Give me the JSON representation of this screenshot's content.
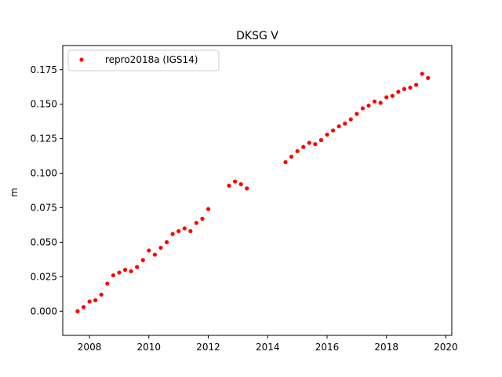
{
  "chart_data": {
    "type": "scatter",
    "title": "DKSG V",
    "xlabel": "",
    "ylabel": "m",
    "xlim": [
      2007.1,
      2020.2
    ],
    "ylim": [
      -0.0175,
      0.1925
    ],
    "x_ticks": [
      2008,
      2010,
      2012,
      2014,
      2016,
      2018,
      2020
    ],
    "y_ticks": [
      0.0,
      0.025,
      0.05,
      0.075,
      0.1,
      0.125,
      0.15,
      0.175
    ],
    "x_tick_labels": [
      "2008",
      "2010",
      "2012",
      "2014",
      "2016",
      "2018",
      "2020"
    ],
    "y_tick_labels": [
      "0.000",
      "0.025",
      "0.050",
      "0.075",
      "0.100",
      "0.125",
      "0.150",
      "0.175"
    ],
    "grid": false,
    "legend_position": "top-left",
    "series": [
      {
        "name": "repro2018a (IGS14)",
        "color": "#ff0000",
        "marker": "circle",
        "x": [
          2007.6,
          2007.8,
          2008.0,
          2008.2,
          2008.4,
          2008.6,
          2008.8,
          2009.0,
          2009.2,
          2009.4,
          2009.6,
          2009.8,
          2010.0,
          2010.2,
          2010.4,
          2010.6,
          2010.8,
          2011.0,
          2011.2,
          2011.4,
          2011.6,
          2011.8,
          2012.0,
          2012.7,
          2012.9,
          2013.1,
          2013.3,
          2014.6,
          2014.8,
          2015.0,
          2015.2,
          2015.4,
          2015.6,
          2015.8,
          2016.0,
          2016.2,
          2016.4,
          2016.6,
          2016.8,
          2017.0,
          2017.2,
          2017.4,
          2017.6,
          2017.8,
          2018.0,
          2018.2,
          2018.4,
          2018.6,
          2018.8,
          2019.0,
          2019.2,
          2019.4
        ],
        "y": [
          0.0,
          0.003,
          0.007,
          0.008,
          0.012,
          0.02,
          0.026,
          0.028,
          0.03,
          0.029,
          0.032,
          0.037,
          0.044,
          0.041,
          0.046,
          0.05,
          0.056,
          0.058,
          0.06,
          0.058,
          0.064,
          0.067,
          0.074,
          0.091,
          0.094,
          0.092,
          0.089,
          0.108,
          0.112,
          0.116,
          0.119,
          0.122,
          0.121,
          0.124,
          0.128,
          0.131,
          0.134,
          0.136,
          0.139,
          0.143,
          0.147,
          0.149,
          0.152,
          0.151,
          0.155,
          0.156,
          0.159,
          0.161,
          0.162,
          0.164,
          0.172,
          0.169
        ]
      }
    ]
  }
}
